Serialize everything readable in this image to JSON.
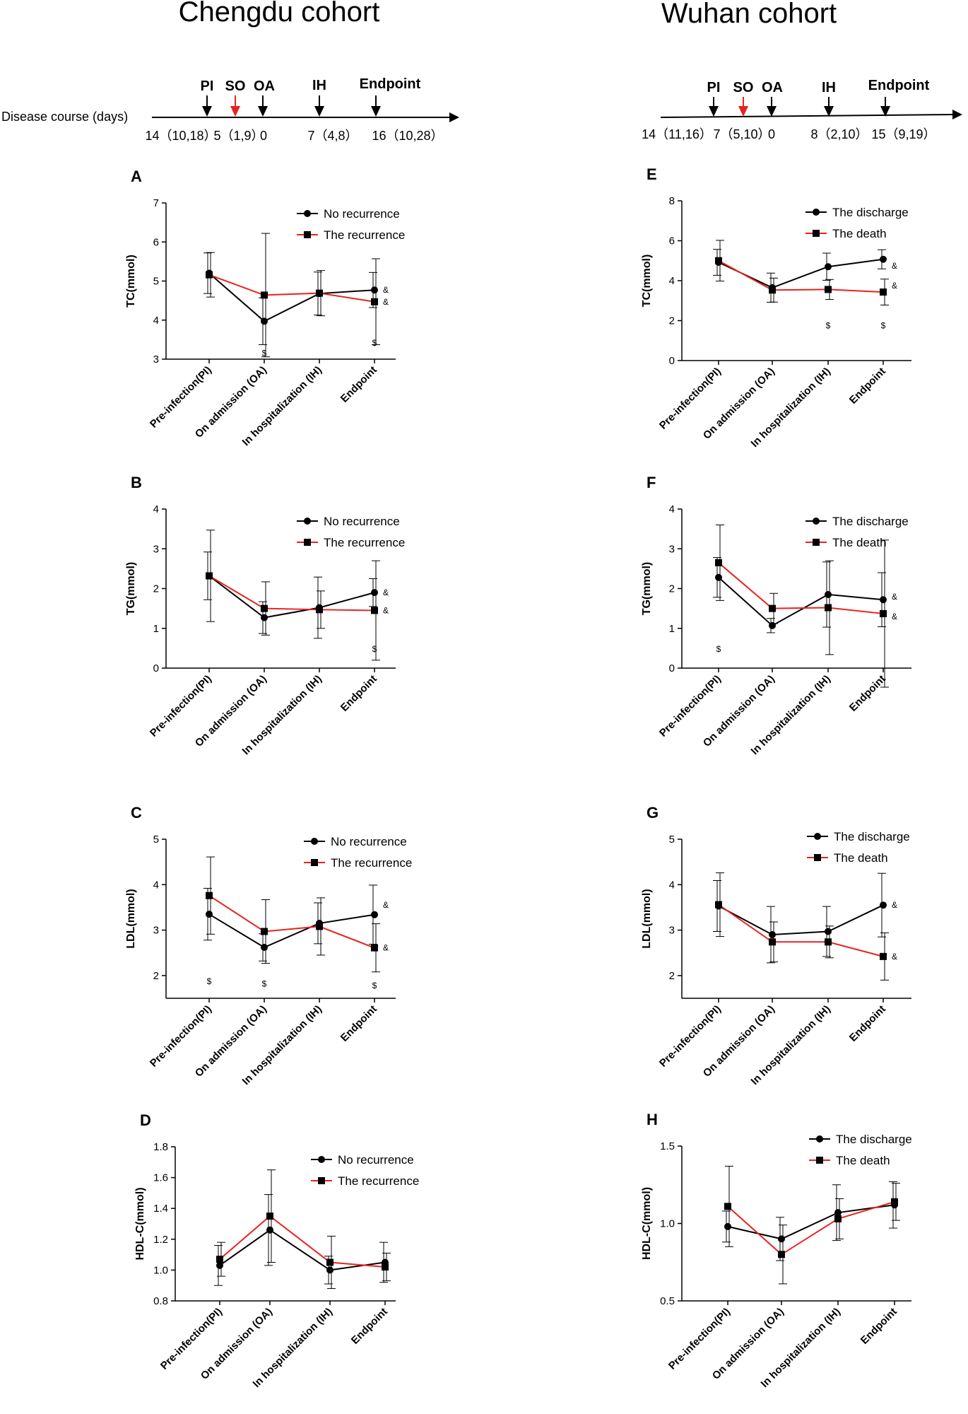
{
  "colors": {
    "black_series": "#000000",
    "red_series": "#e8231f",
    "axis": "#000000"
  },
  "cohorts": [
    {
      "title": "Chengdu cohort",
      "timeline": {
        "axis_label": "Disease course (days)",
        "markers": [
          {
            "label": "PI",
            "color": "#000000"
          },
          {
            "label": "SO",
            "color": "#e8231f"
          },
          {
            "label": "OA",
            "color": "#000000"
          },
          {
            "label": "IH",
            "color": "#000000"
          },
          {
            "label": "Endpoint",
            "color": "#000000"
          }
        ],
        "intervals": [
          "14（10,18）",
          "5（1,9）",
          "0",
          "7（4,8）",
          "16（10,28）"
        ]
      }
    },
    {
      "title": "Wuhan cohort",
      "timeline": {
        "axis_label": "",
        "markers": [
          {
            "label": "PI",
            "color": "#000000"
          },
          {
            "label": "SO",
            "color": "#e8231f"
          },
          {
            "label": "OA",
            "color": "#000000"
          },
          {
            "label": "IH",
            "color": "#000000"
          },
          {
            "label": "Endpoint",
            "color": "#000000"
          }
        ],
        "intervals": [
          "14（11,16）",
          "7（5,10）",
          "0",
          "8（2,10）",
          "15（9,19）"
        ]
      }
    }
  ],
  "chart_data": [
    {
      "panel": "A",
      "type": "line",
      "ylabel": "TC(mmol)",
      "ylim": [
        3,
        7
      ],
      "yticks": [
        "3",
        "4",
        "5",
        "6",
        "7"
      ],
      "categories": [
        "Pre-infection(PI)",
        "On admission (OA)",
        "In hospitalization (IH)",
        "Endpoint"
      ],
      "series": [
        {
          "name": "No recurrence",
          "color": "#000000",
          "marker": "circle",
          "values": [
            5.2,
            3.97,
            4.68,
            4.77
          ],
          "err": [
            0.52,
            0.6,
            0.55,
            0.45
          ]
        },
        {
          "name": "The recurrence",
          "color": "#e8231f",
          "marker": "square",
          "values": [
            5.16,
            4.64,
            4.69,
            4.47
          ],
          "err": [
            0.57,
            1.58,
            0.58,
            1.1
          ]
        }
      ],
      "annotations": [
        {
          "text": "$",
          "cat": 1,
          "y": 3.15
        },
        {
          "text": "$",
          "cat": 3,
          "y": 3.42
        },
        {
          "text": "&",
          "cat": 3,
          "y": 4.77,
          "side": "right"
        },
        {
          "text": "&",
          "cat": 3,
          "y": 4.47,
          "side": "right"
        }
      ]
    },
    {
      "panel": "B",
      "type": "line",
      "ylabel": "TG(mmol)",
      "ylim": [
        0,
        4
      ],
      "yticks": [
        "0",
        "1",
        "2",
        "3",
        "4"
      ],
      "categories": [
        "Pre-infection(PI)",
        "On admission (OA)",
        "In hospitalization (IH)",
        "Endpoint"
      ],
      "series": [
        {
          "name": "No recurrence",
          "color": "#000000",
          "marker": "circle",
          "values": [
            2.32,
            1.27,
            1.52,
            1.9
          ],
          "err": [
            0.6,
            0.4,
            0.77,
            0.35
          ]
        },
        {
          "name": "The recurrence",
          "color": "#e8231f",
          "marker": "square",
          "values": [
            2.32,
            1.5,
            1.47,
            1.45
          ],
          "err": [
            1.15,
            0.67,
            0.47,
            1.25
          ]
        }
      ],
      "annotations": [
        {
          "text": "$",
          "cat": 3,
          "y": 0.48
        },
        {
          "text": "&",
          "cat": 3,
          "y": 1.9,
          "side": "right"
        },
        {
          "text": "&",
          "cat": 3,
          "y": 1.45,
          "side": "right"
        }
      ]
    },
    {
      "panel": "C",
      "type": "line",
      "ylabel": "LDL(mmol)",
      "ylim": [
        1.5,
        5
      ],
      "yticks": [
        "2",
        "3",
        "4",
        "5"
      ],
      "categories": [
        "Pre-infection(PI)",
        "On admission (OA)",
        "In hospitalization (IH)",
        "Endpoint"
      ],
      "series": [
        {
          "name": "No recurrence",
          "color": "#000000",
          "marker": "circle",
          "values": [
            3.35,
            2.62,
            3.15,
            3.34
          ],
          "err": [
            0.57,
            0.3,
            0.45,
            0.65
          ]
        },
        {
          "name": "The recurrence",
          "color": "#e8231f",
          "marker": "square",
          "values": [
            3.76,
            2.97,
            3.08,
            2.61
          ],
          "err": [
            0.85,
            0.7,
            0.63,
            0.53
          ]
        }
      ],
      "annotations": [
        {
          "text": "$",
          "cat": 0,
          "y": 1.87
        },
        {
          "text": "$",
          "cat": 1,
          "y": 1.82
        },
        {
          "text": "$",
          "cat": 3,
          "y": 1.78
        },
        {
          "text": "&",
          "cat": 3,
          "y": 3.55,
          "side": "right"
        },
        {
          "text": "&",
          "cat": 3,
          "y": 2.61,
          "side": "right"
        }
      ]
    },
    {
      "panel": "D",
      "type": "line",
      "ylabel": "HDL-C(mmol)",
      "ylim": [
        0.8,
        1.8
      ],
      "yticks": [
        "0.8",
        "1.0",
        "1.2",
        "1.4",
        "1.6",
        "1.8"
      ],
      "categories": [
        "Pre-infection(PI)",
        "On admission (OA)",
        "In hospitalization (IH)",
        "Endpoint"
      ],
      "series": [
        {
          "name": "No recurrence",
          "color": "#000000",
          "marker": "circle",
          "values": [
            1.03,
            1.26,
            1.0,
            1.05
          ],
          "err": [
            0.13,
            0.23,
            0.09,
            0.13
          ]
        },
        {
          "name": "The recurrence",
          "color": "#e8231f",
          "marker": "square",
          "values": [
            1.07,
            1.35,
            1.05,
            1.02
          ],
          "err": [
            0.11,
            0.3,
            0.17,
            0.09
          ]
        }
      ],
      "annotations": []
    },
    {
      "panel": "E",
      "type": "line",
      "ylabel": "TC(mmol)",
      "ylim": [
        0,
        8
      ],
      "yticks": [
        "0",
        "2",
        "4",
        "6",
        "8"
      ],
      "categories": [
        "Pre-infection(PI)",
        "On admission (OA)",
        "In hospitalization (IH)",
        "Endpoint"
      ],
      "series": [
        {
          "name": "The discharge",
          "color": "#000000",
          "marker": "circle",
          "values": [
            4.92,
            3.65,
            4.7,
            5.07
          ],
          "err": [
            0.65,
            0.73,
            0.68,
            0.48
          ]
        },
        {
          "name": "The death",
          "color": "#e8231f",
          "marker": "square",
          "values": [
            5.0,
            3.53,
            3.56,
            3.43
          ],
          "err": [
            1.02,
            0.6,
            0.5,
            0.65
          ]
        }
      ],
      "annotations": [
        {
          "text": "$",
          "cat": 2,
          "y": 1.75
        },
        {
          "text": "$",
          "cat": 3,
          "y": 1.75
        },
        {
          "text": "&",
          "cat": 3,
          "y": 4.75,
          "side": "right"
        },
        {
          "text": "&",
          "cat": 3,
          "y": 3.75,
          "side": "right"
        }
      ]
    },
    {
      "panel": "F",
      "type": "line",
      "ylabel": "TG(mmol)",
      "ylim": [
        0,
        4
      ],
      "yticks": [
        "0",
        "1",
        "2",
        "3",
        "4"
      ],
      "categories": [
        "Pre-infection(PI)",
        "On admission (OA)",
        "In hospitalization (IH)",
        "Endpoint"
      ],
      "series": [
        {
          "name": "The discharge",
          "color": "#000000",
          "marker": "circle",
          "values": [
            2.28,
            1.07,
            1.85,
            1.72
          ],
          "err": [
            0.5,
            0.18,
            0.82,
            0.68
          ]
        },
        {
          "name": "The death",
          "color": "#e8231f",
          "marker": "square",
          "values": [
            2.65,
            1.5,
            1.52,
            1.37
          ],
          "err": [
            0.95,
            0.38,
            1.18,
            1.85
          ]
        }
      ],
      "annotations": [
        {
          "text": "$",
          "cat": 0,
          "y": 0.48
        },
        {
          "text": "&",
          "cat": 3,
          "y": 1.8,
          "side": "right"
        },
        {
          "text": "&",
          "cat": 3,
          "y": 1.3,
          "side": "right"
        }
      ]
    },
    {
      "panel": "G",
      "type": "line",
      "ylabel": "LDL(mmol)",
      "ylim": [
        1.5,
        5
      ],
      "yticks": [
        "2",
        "3",
        "4",
        "5"
      ],
      "categories": [
        "Pre-infection(PI)",
        "On admission (OA)",
        "In hospitalization (IH)",
        "Endpoint"
      ],
      "series": [
        {
          "name": "The discharge",
          "color": "#000000",
          "marker": "circle",
          "values": [
            3.53,
            2.9,
            2.97,
            3.55
          ],
          "err": [
            0.56,
            0.62,
            0.55,
            0.7
          ]
        },
        {
          "name": "The death",
          "color": "#e8231f",
          "marker": "square",
          "values": [
            3.56,
            2.74,
            2.74,
            2.42
          ],
          "err": [
            0.7,
            0.44,
            0.35,
            0.52
          ]
        }
      ],
      "annotations": [
        {
          "text": "&",
          "cat": 3,
          "y": 3.55,
          "side": "right"
        },
        {
          "text": "&",
          "cat": 3,
          "y": 2.42,
          "side": "right"
        }
      ]
    },
    {
      "panel": "H",
      "type": "line",
      "ylabel": "HDL-C(mmol)",
      "ylim": [
        0.5,
        1.5
      ],
      "yticks": [
        "0.5",
        "1.0",
        "1.5"
      ],
      "categories": [
        "Pre-infection(PI)",
        "On admission (OA)",
        "In hospitalization (IH)",
        "Endpoint"
      ],
      "series": [
        {
          "name": "The discharge",
          "color": "#000000",
          "marker": "circle",
          "values": [
            0.98,
            0.9,
            1.07,
            1.12
          ],
          "err": [
            0.1,
            0.14,
            0.18,
            0.15
          ]
        },
        {
          "name": "The death",
          "color": "#e8231f",
          "marker": "square",
          "values": [
            1.11,
            0.8,
            1.03,
            1.14
          ],
          "err": [
            0.26,
            0.19,
            0.13,
            0.12
          ]
        }
      ],
      "annotations": []
    }
  ]
}
